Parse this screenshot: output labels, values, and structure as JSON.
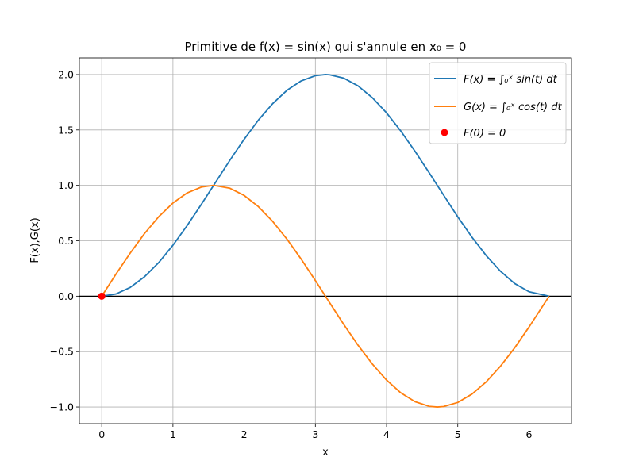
{
  "chart_data": {
    "type": "line",
    "title": "Primitive de f(x) = sin(x) qui s'annule en x₀ = 0",
    "xlabel": "x",
    "ylabel": "F(x),G(x)",
    "xlim": [
      -0.314,
      6.597
    ],
    "ylim": [
      -1.15,
      2.15
    ],
    "xticks": [
      0,
      1,
      2,
      3,
      4,
      5,
      6
    ],
    "yticks": [
      -1.0,
      -0.5,
      0.0,
      0.5,
      1.0,
      1.5,
      2.0
    ],
    "xtick_labels": [
      "0",
      "1",
      "2",
      "3",
      "4",
      "5",
      "6"
    ],
    "ytick_labels": [
      "−1.0",
      "−0.5",
      "0.0",
      "0.5",
      "1.0",
      "1.5",
      "2.0"
    ],
    "grid": true,
    "legend_position": "top-right",
    "horizontal_line": {
      "y": 0,
      "color": "#000000"
    },
    "series": [
      {
        "name": "F(x) = ∫₀ˣ sin(t) dt",
        "color": "#1f77b4",
        "x": [
          0,
          0.2,
          0.4,
          0.6,
          0.8,
          1.0,
          1.2,
          1.4,
          1.6,
          1.8,
          2.0,
          2.2,
          2.4,
          2.6,
          2.8,
          3.0,
          3.1416,
          3.2,
          3.4,
          3.6,
          3.8,
          4.0,
          4.2,
          4.4,
          4.6,
          4.8,
          5.0,
          5.2,
          5.4,
          5.6,
          5.8,
          6.0,
          6.2832
        ],
        "y": [
          0.0,
          0.02,
          0.079,
          0.175,
          0.303,
          0.46,
          0.638,
          0.83,
          1.029,
          1.227,
          1.416,
          1.589,
          1.737,
          1.857,
          1.942,
          1.99,
          2.0,
          1.998,
          1.967,
          1.897,
          1.791,
          1.654,
          1.49,
          1.307,
          1.112,
          0.913,
          0.716,
          0.532,
          0.366,
          0.225,
          0.114,
          0.04,
          0.0
        ]
      },
      {
        "name": "G(x) = ∫₀ˣ cos(t) dt",
        "color": "#ff7f0e",
        "x": [
          0,
          0.2,
          0.4,
          0.6,
          0.8,
          1.0,
          1.2,
          1.4,
          1.5708,
          1.8,
          2.0,
          2.2,
          2.4,
          2.6,
          2.8,
          3.0,
          3.2,
          3.4,
          3.6,
          3.8,
          4.0,
          4.2,
          4.4,
          4.6,
          4.7124,
          4.8,
          5.0,
          5.2,
          5.4,
          5.6,
          5.8,
          6.0,
          6.2832
        ],
        "y": [
          0.0,
          0.199,
          0.389,
          0.565,
          0.717,
          0.841,
          0.932,
          0.985,
          1.0,
          0.974,
          0.909,
          0.808,
          0.675,
          0.516,
          0.335,
          0.141,
          -0.058,
          -0.256,
          -0.443,
          -0.612,
          -0.757,
          -0.872,
          -0.952,
          -0.994,
          -1.0,
          -0.996,
          -0.959,
          -0.883,
          -0.773,
          -0.631,
          -0.465,
          -0.279,
          0.0
        ]
      },
      {
        "name": "F(0) = 0",
        "type": "scatter",
        "color": "#ff0000",
        "x": [
          0
        ],
        "y": [
          0
        ]
      }
    ]
  }
}
